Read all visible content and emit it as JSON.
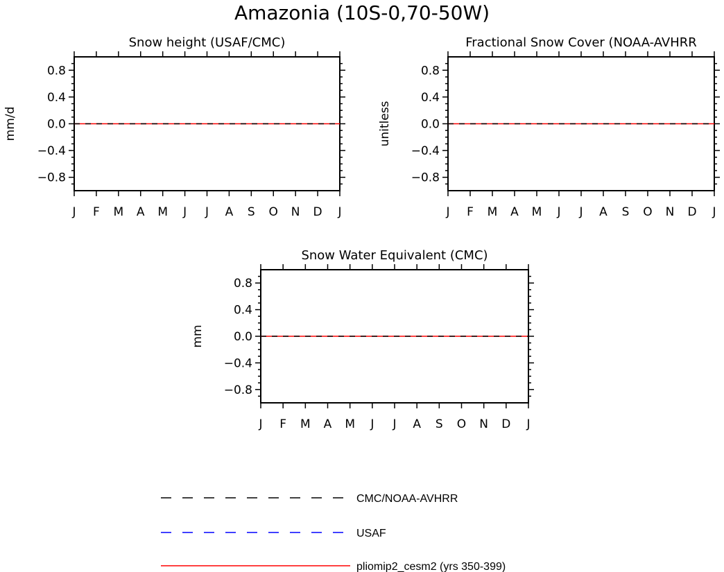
{
  "main_title": "Amazonia (10S-0,70-50W)",
  "chart_data": [
    {
      "type": "line",
      "title": "Snow height (USAF/CMC)",
      "xlabel": "",
      "ylabel": "mm/d",
      "categories": [
        "J",
        "F",
        "M",
        "A",
        "M",
        "J",
        "J",
        "A",
        "S",
        "O",
        "N",
        "D",
        "J"
      ],
      "ylim": [
        -1,
        1
      ],
      "yticks": [
        "0.8",
        "0.4",
        "0.0",
        "-0.4",
        "-0.8"
      ],
      "series": [
        {
          "name": "CMC/NOAA-AVHRR",
          "values": [
            0,
            0,
            0,
            0,
            0,
            0,
            0,
            0,
            0,
            0,
            0,
            0,
            0
          ]
        },
        {
          "name": "pliomip2_cesm2 (yrs 350-399)",
          "values": [
            0,
            0,
            0,
            0,
            0,
            0,
            0,
            0,
            0,
            0,
            0,
            0,
            0
          ]
        }
      ]
    },
    {
      "type": "line",
      "title": "Fractional Snow Cover (NOAA-AVHRR",
      "xlabel": "",
      "ylabel": "unitless",
      "categories": [
        "J",
        "F",
        "M",
        "A",
        "M",
        "J",
        "J",
        "A",
        "S",
        "O",
        "N",
        "D",
        "J"
      ],
      "ylim": [
        -1,
        1
      ],
      "yticks": [
        "0.8",
        "0.4",
        "0.0",
        "-0.4",
        "-0.8"
      ],
      "series": [
        {
          "name": "CMC/NOAA-AVHRR",
          "values": [
            0,
            0,
            0,
            0,
            0,
            0,
            0,
            0,
            0,
            0,
            0,
            0,
            0
          ]
        },
        {
          "name": "pliomip2_cesm2 (yrs 350-399)",
          "values": [
            0,
            0,
            0,
            0,
            0,
            0,
            0,
            0,
            0,
            0,
            0,
            0,
            0
          ]
        }
      ]
    },
    {
      "type": "line",
      "title": "Snow Water Equivalent (CMC)",
      "xlabel": "",
      "ylabel": "mm",
      "categories": [
        "J",
        "F",
        "M",
        "A",
        "M",
        "J",
        "J",
        "A",
        "S",
        "O",
        "N",
        "D",
        "J"
      ],
      "ylim": [
        -1,
        1
      ],
      "yticks": [
        "0.8",
        "0.4",
        "0.0",
        "-0.4",
        "-0.8"
      ],
      "series": [
        {
          "name": "CMC/NOAA-AVHRR",
          "values": [
            0,
            0,
            0,
            0,
            0,
            0,
            0,
            0,
            0,
            0,
            0,
            0,
            0
          ]
        },
        {
          "name": "pliomip2_cesm2 (yrs 350-399)",
          "values": [
            0,
            0,
            0,
            0,
            0,
            0,
            0,
            0,
            0,
            0,
            0,
            0,
            0
          ]
        }
      ]
    }
  ],
  "legend": [
    {
      "label": "CMC/NOAA-AVHRR",
      "color": "#000000",
      "style": "dashed"
    },
    {
      "label": "USAF",
      "color": "#0000ff",
      "style": "dashed"
    },
    {
      "label": "pliomip2_cesm2 (yrs 350-399)",
      "color": "#ff0000",
      "style": "solid"
    }
  ]
}
